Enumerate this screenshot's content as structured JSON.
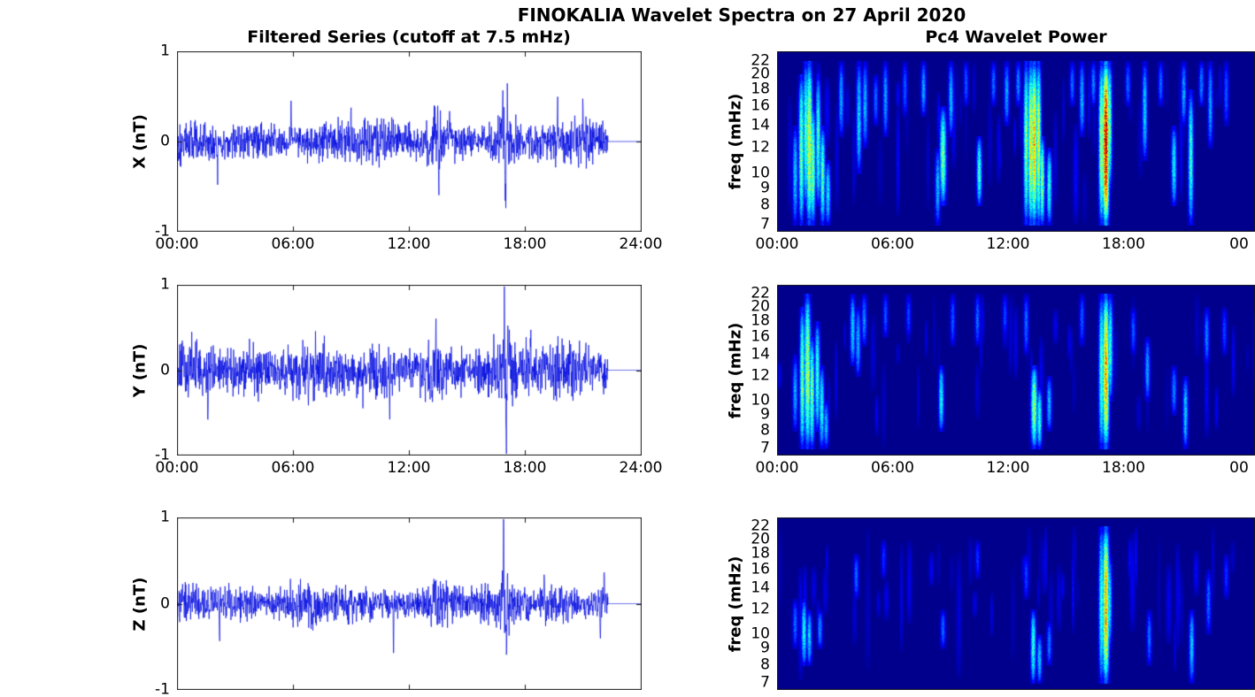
{
  "figure": {
    "title": "FINOKALIA Wavelet Spectra on 27 April 2020"
  },
  "chart_data": {
    "figure_title": "FINOKALIA Wavelet Spectra on 27 April 2020",
    "left_column_title": "Filtered Series (cutoff at 7.5 mHz)",
    "right_column_title": "Pc4 Wavelet Power",
    "colormap": "jet",
    "line_color": "#0008e0",
    "background_color": "#ffffff",
    "time_range_hours": [
      0,
      24
    ],
    "time_ticks_left": [
      {
        "hour": 0,
        "label": "00:00"
      },
      {
        "hour": 6,
        "label": "06:00"
      },
      {
        "hour": 12,
        "label": "12:00"
      },
      {
        "hour": 18,
        "label": "18:00"
      },
      {
        "hour": 24,
        "label": "24:00"
      }
    ],
    "time_ticks_right": [
      {
        "hour": 0,
        "label": "00:00"
      },
      {
        "hour": 6,
        "label": "06:00"
      },
      {
        "hour": 12,
        "label": "12:00"
      },
      {
        "hour": 18,
        "label": "18:00"
      },
      {
        "hour": 24,
        "label": "00"
      }
    ],
    "series_panels": [
      {
        "id": "x-series",
        "type": "line",
        "ylabel": "X (nT)",
        "ylim": [
          -1,
          1
        ],
        "yticks": [
          1,
          0,
          -1
        ],
        "noise_amplitude": 0.2,
        "data_end_hour": 22.3,
        "flat_value_after_end": 0,
        "x_tick_labels_visible": true,
        "seed": 101,
        "amplitude_bursts": [
          {
            "hour": 8.8,
            "width_h": 1.4,
            "factor": 1.25
          },
          {
            "hour": 13.4,
            "width_h": 0.7,
            "factor": 1.7
          },
          {
            "hour": 16.95,
            "width_h": 0.5,
            "factor": 1.6
          },
          {
            "hour": 21.2,
            "width_h": 1.2,
            "factor": 1.25
          }
        ],
        "spikes": [
          {
            "hour": 2.1,
            "amp": -0.38
          },
          {
            "hour": 5.9,
            "amp": 0.35
          },
          {
            "hour": 9.0,
            "amp": 0.4
          },
          {
            "hour": 13.35,
            "amp": 0.6
          },
          {
            "hour": 13.55,
            "amp": -0.5
          },
          {
            "hour": 14.1,
            "amp": 0.45
          },
          {
            "hour": 16.85,
            "amp": 0.62
          },
          {
            "hour": 17.0,
            "amp": -0.95
          },
          {
            "hour": 17.1,
            "amp": 0.5
          },
          {
            "hour": 19.7,
            "amp": 0.42
          },
          {
            "hour": 21.0,
            "amp": 0.52
          }
        ]
      },
      {
        "id": "y-series",
        "type": "line",
        "ylabel": "Y (nT)",
        "ylim": [
          -1,
          1
        ],
        "yticks": [
          1,
          0,
          -1
        ],
        "noise_amplitude": 0.29,
        "data_end_hour": 22.3,
        "flat_value_after_end": 0,
        "x_tick_labels_visible": true,
        "seed": 202,
        "amplitude_bursts": [
          {
            "hour": 13.4,
            "width_h": 0.6,
            "factor": 1.25
          },
          {
            "hour": 17.0,
            "width_h": 0.5,
            "factor": 1.5
          }
        ],
        "spikes": [
          {
            "hour": 1.6,
            "amp": -0.5
          },
          {
            "hour": 6.0,
            "amp": -0.45
          },
          {
            "hour": 11.0,
            "amp": -0.5
          },
          {
            "hour": 13.4,
            "amp": 0.5
          },
          {
            "hour": 16.95,
            "amp": 0.95
          },
          {
            "hour": 17.05,
            "amp": -0.9
          },
          {
            "hour": 18.3,
            "amp": 0.42
          },
          {
            "hour": 21.3,
            "amp": 0.45
          }
        ]
      },
      {
        "id": "z-series",
        "type": "line",
        "ylabel": "Z (nT)",
        "ylim": [
          -1,
          1
        ],
        "yticks": [
          1,
          0,
          -1
        ],
        "noise_amplitude": 0.2,
        "data_end_hour": 22.3,
        "flat_value_after_end": 0,
        "x_tick_labels_visible": false,
        "seed": 303,
        "amplitude_bursts": [
          {
            "hour": 13.4,
            "width_h": 0.6,
            "factor": 1.3
          },
          {
            "hour": 17.0,
            "width_h": 0.5,
            "factor": 1.6
          }
        ],
        "spikes": [
          {
            "hour": 2.2,
            "amp": -0.5
          },
          {
            "hour": 7.0,
            "amp": -0.35
          },
          {
            "hour": 11.2,
            "amp": -0.45
          },
          {
            "hour": 13.3,
            "amp": 0.4
          },
          {
            "hour": 16.9,
            "amp": 0.85
          },
          {
            "hour": 17.05,
            "amp": -0.8
          },
          {
            "hour": 19.0,
            "amp": 0.35
          },
          {
            "hour": 21.9,
            "amp": -0.55
          },
          {
            "hour": 22.1,
            "amp": 0.35
          }
        ]
      }
    ],
    "event_columns": [
      "hour",
      "freq_lo_mhz",
      "freq_hi_mhz",
      "intensity",
      "width_px"
    ],
    "wavelet_panels": [
      {
        "id": "x-wavelet",
        "type": "heatmap",
        "ylabel": "freq (mHz)",
        "freq_scale": "log",
        "freq_ticks": [
          22,
          20,
          18,
          16,
          14,
          12,
          10,
          9,
          8,
          7
        ],
        "freq_axis_range_mhz": [
          6.7,
          23.5
        ],
        "x_tick_labels_visible": true,
        "seed": 11,
        "events": [
          [
            0.9,
            7,
            14,
            0.32,
            2
          ],
          [
            1.25,
            7,
            20,
            0.5,
            2
          ],
          [
            1.45,
            8,
            22,
            0.45,
            2
          ],
          [
            1.65,
            7,
            22,
            0.58,
            2.5
          ],
          [
            1.85,
            7,
            16,
            0.5,
            2
          ],
          [
            2.1,
            8,
            20,
            0.42,
            2
          ],
          [
            2.35,
            7,
            14,
            0.45,
            2
          ],
          [
            2.6,
            7,
            11,
            0.35,
            2
          ],
          [
            3.3,
            13,
            22,
            0.28,
            2
          ],
          [
            4.25,
            10,
            22,
            0.34,
            2
          ],
          [
            4.55,
            12,
            22,
            0.3,
            2
          ],
          [
            5.1,
            14,
            20,
            0.22,
            2
          ],
          [
            5.6,
            13,
            22,
            0.28,
            2
          ],
          [
            6.6,
            15,
            22,
            0.2,
            2
          ],
          [
            7.6,
            15,
            22,
            0.28,
            2
          ],
          [
            8.3,
            7,
            12,
            0.3,
            2
          ],
          [
            8.6,
            8,
            16,
            0.48,
            2.5
          ],
          [
            9.0,
            13,
            22,
            0.3,
            2
          ],
          [
            9.8,
            16,
            22,
            0.2,
            2
          ],
          [
            10.5,
            8,
            13,
            0.42,
            2
          ],
          [
            11.2,
            16,
            22,
            0.22,
            2
          ],
          [
            11.9,
            14,
            22,
            0.28,
            2
          ],
          [
            12.5,
            16,
            22,
            0.25,
            2
          ],
          [
            12.9,
            7,
            22,
            0.5,
            2
          ],
          [
            13.15,
            7,
            22,
            0.6,
            2
          ],
          [
            13.35,
            7,
            22,
            0.68,
            2.5
          ],
          [
            13.55,
            7,
            22,
            0.58,
            2
          ],
          [
            13.75,
            7,
            13,
            0.5,
            2
          ],
          [
            14.1,
            7,
            12,
            0.4,
            2
          ],
          [
            15.3,
            16,
            22,
            0.22,
            2
          ],
          [
            15.8,
            13,
            22,
            0.3,
            2
          ],
          [
            16.4,
            16,
            22,
            0.25,
            2
          ],
          [
            16.85,
            7,
            22,
            0.55,
            2
          ],
          [
            17.05,
            7,
            22,
            0.93,
            2.5
          ],
          [
            17.25,
            9,
            22,
            0.5,
            2
          ],
          [
            18.2,
            16,
            22,
            0.22,
            2
          ],
          [
            19.1,
            11,
            22,
            0.33,
            2
          ],
          [
            19.9,
            16,
            22,
            0.22,
            2
          ],
          [
            20.6,
            8,
            14,
            0.38,
            2
          ],
          [
            21.1,
            14,
            22,
            0.28,
            2
          ],
          [
            21.45,
            7,
            18,
            0.42,
            2
          ],
          [
            22.0,
            16,
            22,
            0.25,
            2
          ],
          [
            22.5,
            12,
            22,
            0.28,
            2
          ],
          [
            23.3,
            14,
            22,
            0.2,
            2
          ]
        ]
      },
      {
        "id": "y-wavelet",
        "type": "heatmap",
        "ylabel": "freq (mHz)",
        "freq_scale": "log",
        "freq_ticks": [
          22,
          20,
          18,
          16,
          14,
          12,
          10,
          9,
          8,
          7
        ],
        "freq_axis_range_mhz": [
          6.7,
          23.5
        ],
        "x_tick_labels_visible": true,
        "seed": 22,
        "events": [
          [
            0.9,
            8,
            14,
            0.28,
            2
          ],
          [
            1.3,
            7,
            20,
            0.48,
            2
          ],
          [
            1.55,
            7,
            22,
            0.55,
            2.5
          ],
          [
            1.8,
            7,
            16,
            0.48,
            2
          ],
          [
            2.05,
            8,
            18,
            0.42,
            2
          ],
          [
            2.3,
            7,
            13,
            0.38,
            2
          ],
          [
            2.55,
            7,
            10,
            0.3,
            2
          ],
          [
            3.9,
            13,
            22,
            0.33,
            2
          ],
          [
            4.2,
            12,
            20,
            0.3,
            2
          ],
          [
            4.5,
            15,
            22,
            0.25,
            2
          ],
          [
            5.6,
            16,
            22,
            0.2,
            2
          ],
          [
            6.8,
            16,
            22,
            0.18,
            2
          ],
          [
            8.5,
            8,
            13,
            0.38,
            2
          ],
          [
            9.1,
            15,
            22,
            0.2,
            2
          ],
          [
            10.4,
            15,
            22,
            0.22,
            2
          ],
          [
            11.8,
            16,
            22,
            0.18,
            2
          ],
          [
            12.9,
            14,
            22,
            0.22,
            2
          ],
          [
            13.35,
            7,
            13,
            0.52,
            2.5
          ],
          [
            13.6,
            7,
            11,
            0.42,
            2
          ],
          [
            14.1,
            8,
            12,
            0.3,
            2
          ],
          [
            15.8,
            15,
            22,
            0.2,
            2
          ],
          [
            16.85,
            7,
            22,
            0.45,
            2
          ],
          [
            17.05,
            7,
            22,
            0.72,
            2.5
          ],
          [
            17.3,
            10,
            22,
            0.4,
            2
          ],
          [
            18.5,
            14,
            20,
            0.2,
            2
          ],
          [
            19.2,
            10,
            16,
            0.28,
            2
          ],
          [
            20.6,
            9,
            13,
            0.25,
            2
          ],
          [
            21.2,
            7,
            12,
            0.33,
            2
          ],
          [
            22.3,
            13,
            20,
            0.24,
            2
          ],
          [
            23.2,
            14,
            20,
            0.18,
            2
          ]
        ]
      },
      {
        "id": "z-wavelet",
        "type": "heatmap",
        "ylabel": "freq (mHz)",
        "freq_scale": "log",
        "freq_ticks": [
          22,
          20,
          18,
          16,
          14,
          12,
          10,
          9,
          8,
          7
        ],
        "freq_axis_range_mhz": [
          6.7,
          23.5
        ],
        "x_tick_labels_visible": false,
        "seed": 33,
        "events": [
          [
            0.9,
            9,
            13,
            0.22,
            2
          ],
          [
            1.4,
            8,
            13,
            0.38,
            2
          ],
          [
            1.65,
            8,
            12,
            0.32,
            2
          ],
          [
            2.2,
            9,
            12,
            0.26,
            2
          ],
          [
            4.1,
            13,
            18,
            0.22,
            2
          ],
          [
            5.5,
            15,
            20,
            0.16,
            2
          ],
          [
            8.6,
            9,
            12,
            0.22,
            2
          ],
          [
            10.4,
            15,
            20,
            0.16,
            2
          ],
          [
            12.9,
            13,
            18,
            0.18,
            2
          ],
          [
            13.3,
            7,
            12,
            0.42,
            2
          ],
          [
            13.6,
            7,
            10,
            0.32,
            2
          ],
          [
            14.1,
            8,
            11,
            0.24,
            2
          ],
          [
            16.85,
            7,
            22,
            0.42,
            2
          ],
          [
            17.05,
            7,
            22,
            0.7,
            2.5
          ],
          [
            17.25,
            9,
            18,
            0.35,
            2
          ],
          [
            19.3,
            8,
            12,
            0.22,
            2
          ],
          [
            21.5,
            7,
            12,
            0.32,
            2
          ],
          [
            22.4,
            10,
            16,
            0.22,
            2
          ],
          [
            23.3,
            13,
            18,
            0.16,
            2
          ]
        ]
      }
    ]
  }
}
